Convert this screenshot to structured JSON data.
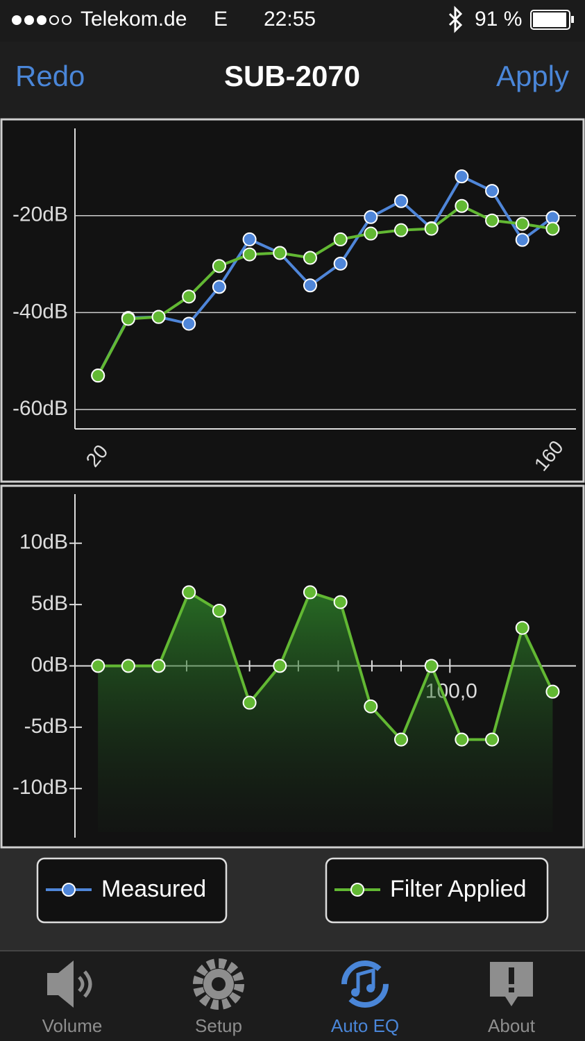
{
  "status_bar": {
    "carrier": "Telekom.de",
    "network": "E",
    "time": "22:55",
    "battery": "91 %"
  },
  "nav": {
    "left": "Redo",
    "title": "SUB-2070",
    "right": "Apply"
  },
  "chart_data": [
    {
      "type": "line",
      "x_scale": "log",
      "grid": true,
      "x": [
        20,
        22.97,
        26.39,
        30.31,
        34.82,
        40,
        45.95,
        52.78,
        60.63,
        69.64,
        80,
        91.9,
        105.56,
        121.26,
        139.29,
        160
      ],
      "xlim": [
        18,
        178
      ],
      "xticks": [
        20,
        160
      ],
      "ylim": [
        -64,
        -2
      ],
      "yticks": [
        {
          "value": -20,
          "label": "-20dB"
        },
        {
          "value": -40,
          "label": "-40dB"
        },
        {
          "value": -60,
          "label": "-60dB"
        }
      ],
      "series": [
        {
          "name": "Measured",
          "color": "#4f86d9",
          "values": [
            -53,
            -41.1,
            -40.9,
            -42.3,
            -34.7,
            -24.9,
            -27.7,
            -34.4,
            -29.9,
            -20.3,
            -17,
            -22.6,
            -11.9,
            -14.9,
            -25,
            -20.4
          ]
        },
        {
          "name": "Filter Applied",
          "color": "#62b833",
          "values": [
            -53,
            -41.3,
            -40.9,
            -36.7,
            -30.4,
            -28,
            -27.7,
            -28.7,
            -24.9,
            -23.7,
            -23,
            -22.7,
            -18,
            -21,
            -21.7,
            -22.7
          ]
        }
      ]
    },
    {
      "type": "area",
      "x_scale": "log",
      "grid": false,
      "x": [
        20,
        22.97,
        26.39,
        30.31,
        34.82,
        40,
        45.95,
        52.78,
        60.63,
        69.64,
        80,
        91.9,
        105.56,
        121.26,
        139.29,
        160
      ],
      "xlim": [
        18,
        178
      ],
      "xticks": [
        {
          "value": 100,
          "label": "100,0"
        }
      ],
      "xminor_ticks": [
        30,
        40,
        50,
        60,
        70,
        80,
        90
      ],
      "ylim": [
        -14,
        14
      ],
      "yticks": [
        {
          "value": 10,
          "label": "10dB"
        },
        {
          "value": 5,
          "label": "5dB"
        },
        {
          "value": 0,
          "label": "0dB"
        },
        {
          "value": -5,
          "label": "-5dB"
        },
        {
          "value": -10,
          "label": "-10dB"
        }
      ],
      "series": [
        {
          "name": "Filter Applied",
          "color": "#62b833",
          "values": [
            0,
            0,
            0,
            6,
            4.5,
            -3,
            0,
            6,
            5.2,
            -3.3,
            -6,
            0,
            -6,
            -6,
            3.1,
            -2.1
          ]
        }
      ]
    }
  ],
  "tab_bar": {
    "items": [
      "Volume",
      "Setup",
      "Auto EQ",
      "About"
    ],
    "active": 2
  }
}
